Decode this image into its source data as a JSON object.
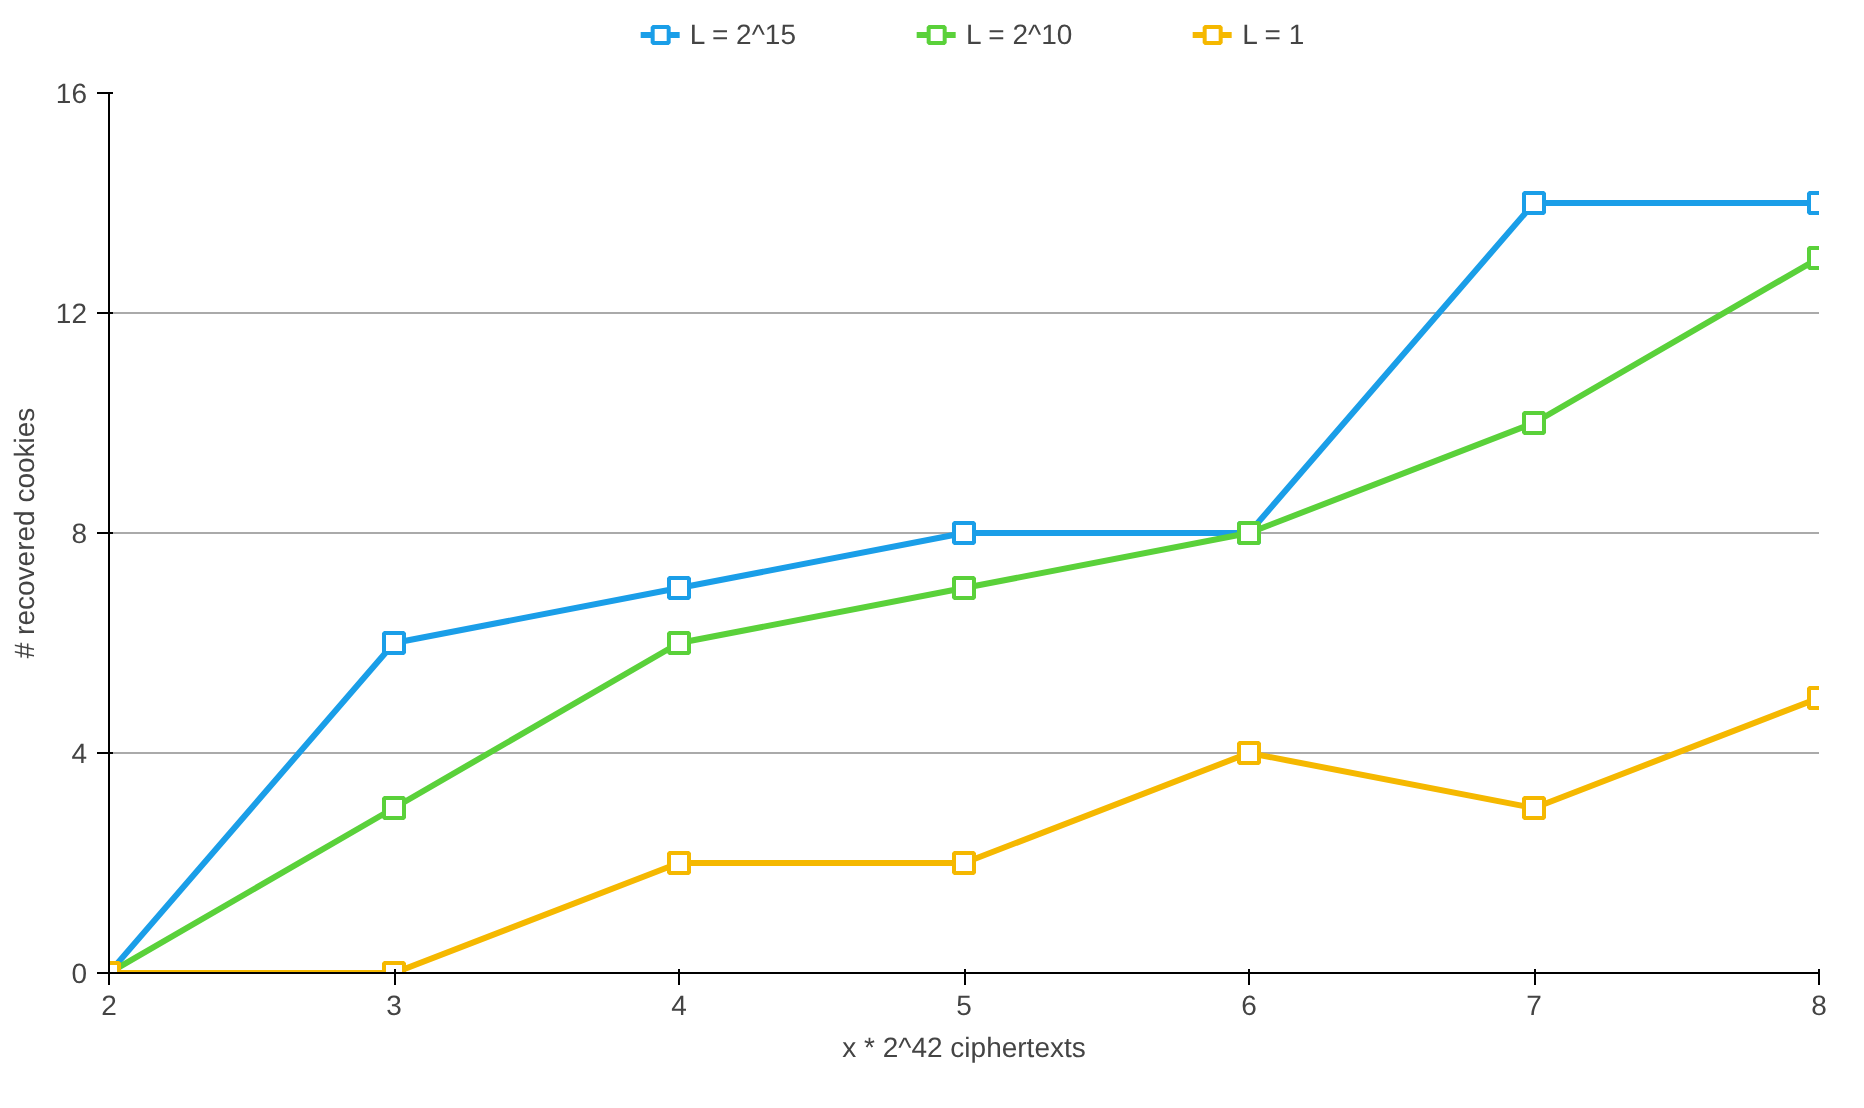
{
  "chart_data": {
    "type": "line",
    "xlabel": "x * 2^42 ciphertexts",
    "ylabel": "# recovered cookies",
    "x": [
      2,
      3,
      4,
      5,
      6,
      7,
      8
    ],
    "series": [
      {
        "name": "L = 2^15",
        "color": "#1a9ee8",
        "values": [
          0,
          6,
          7,
          8,
          8,
          14,
          14
        ]
      },
      {
        "name": "L = 2^10",
        "color": "#5ad13a",
        "values": [
          0,
          3,
          6,
          7,
          8,
          10,
          13
        ]
      },
      {
        "name": "L = 1",
        "color": "#f5b800",
        "values": [
          0,
          0,
          2,
          2,
          4,
          3,
          5
        ]
      }
    ],
    "xlim": [
      2,
      8
    ],
    "xticks": [
      2,
      3,
      4,
      5,
      6,
      7,
      8
    ],
    "ylim": [
      0,
      16
    ],
    "yticks": [
      0,
      4,
      8,
      12,
      16
    ],
    "grid": "y",
    "legend": "top",
    "marker": "square",
    "line_style": "solid"
  }
}
